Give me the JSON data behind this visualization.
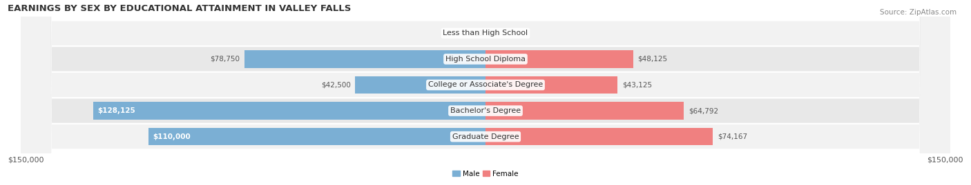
{
  "title": "EARNINGS BY SEX BY EDUCATIONAL ATTAINMENT IN VALLEY FALLS",
  "source": "Source: ZipAtlas.com",
  "categories": [
    "Less than High School",
    "High School Diploma",
    "College or Associate's Degree",
    "Bachelor's Degree",
    "Graduate Degree"
  ],
  "male_values": [
    0,
    78750,
    42500,
    128125,
    110000
  ],
  "female_values": [
    0,
    48125,
    43125,
    64792,
    74167
  ],
  "male_color": "#7bafd4",
  "female_color": "#f08080",
  "label_color_dark": "#555555",
  "label_color_white": "#ffffff",
  "x_max": 150000,
  "xlabel_left": "$150,000",
  "xlabel_right": "$150,000",
  "title_fontsize": 9.5,
  "source_fontsize": 7.5,
  "label_fontsize": 7.5,
  "tick_fontsize": 8,
  "background_color": "#ffffff",
  "row_bg_even": "#f2f2f2",
  "row_bg_odd": "#e8e8e8",
  "row_bg_alpha": 1.0,
  "bar_alpha": 1.0,
  "white_label_threshold": 0.6
}
